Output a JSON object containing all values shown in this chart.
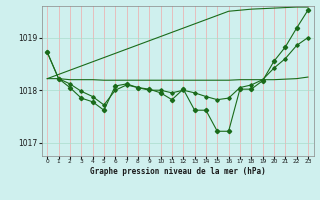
{
  "title": "Graphe pression niveau de la mer (hPa)",
  "background_color": "#cff0ee",
  "grid_color_v": "#f0aaaa",
  "grid_color_h": "#aaddcc",
  "line_color": "#1a6b1a",
  "x_labels": [
    "0",
    "1",
    "2",
    "3",
    "4",
    "5",
    "6",
    "7",
    "8",
    "9",
    "10",
    "11",
    "12",
    "13",
    "14",
    "15",
    "16",
    "17",
    "18",
    "19",
    "20",
    "21",
    "22",
    "23"
  ],
  "ylim": [
    1016.75,
    1019.6
  ],
  "yticks": [
    1017,
    1018,
    1019
  ],
  "series": {
    "line1_jagged": [
      1018.72,
      1018.22,
      1018.05,
      1017.85,
      1017.78,
      1017.62,
      1018.08,
      1018.12,
      1018.05,
      1018.02,
      1017.95,
      1017.82,
      1018.02,
      1017.62,
      1017.62,
      1017.22,
      1017.22,
      1018.02,
      1018.02,
      1018.18,
      1018.55,
      1018.82,
      1019.18,
      1019.52
    ],
    "line2_upper_trend": [
      1018.22,
      1018.3,
      1018.38,
      1018.46,
      1018.54,
      1018.62,
      1018.7,
      1018.78,
      1018.86,
      1018.94,
      1019.02,
      1019.1,
      1019.18,
      1019.26,
      1019.34,
      1019.42,
      1019.5,
      1019.52,
      1019.54,
      1019.55,
      1019.56,
      1019.57,
      1019.58,
      1019.58
    ],
    "line3_flat_trend": [
      1018.22,
      1018.22,
      1018.2,
      1018.2,
      1018.2,
      1018.19,
      1018.19,
      1018.19,
      1018.19,
      1018.19,
      1018.19,
      1018.19,
      1018.19,
      1018.19,
      1018.19,
      1018.19,
      1018.19,
      1018.2,
      1018.2,
      1018.2,
      1018.2,
      1018.21,
      1018.22,
      1018.25
    ],
    "line4_smooth": [
      1018.72,
      1018.22,
      1018.12,
      1017.98,
      1017.88,
      1017.72,
      1018.0,
      1018.1,
      1018.05,
      1018.0,
      1018.0,
      1017.95,
      1018.0,
      1017.95,
      1017.88,
      1017.82,
      1017.85,
      1018.05,
      1018.1,
      1018.2,
      1018.42,
      1018.6,
      1018.85,
      1019.0
    ]
  }
}
